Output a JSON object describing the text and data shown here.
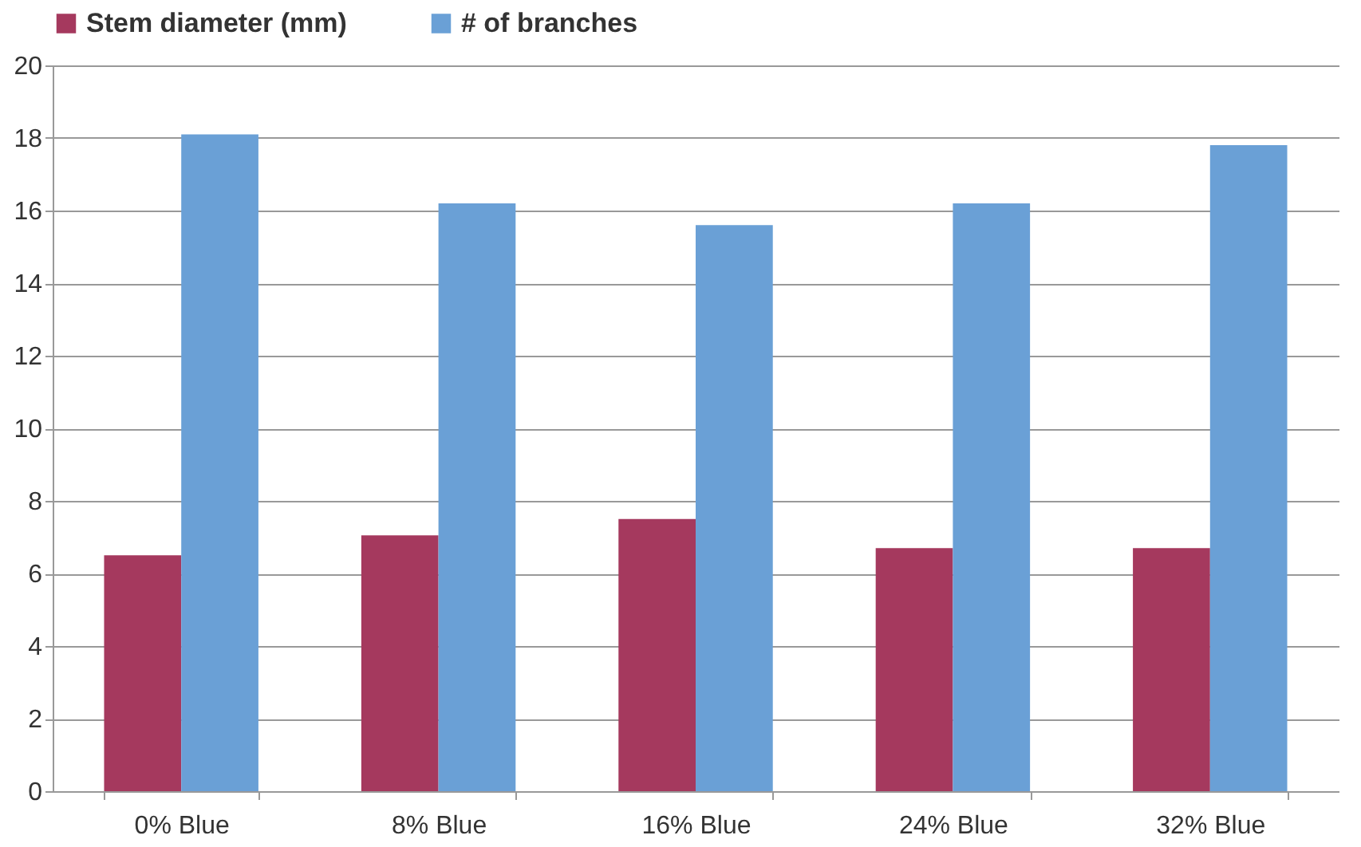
{
  "chart_data": {
    "type": "bar",
    "categories": [
      "0% Blue",
      "8% Blue",
      "16% Blue",
      "24% Blue",
      "32% Blue"
    ],
    "series": [
      {
        "name": "Stem diameter (mm)",
        "color": "#a5395e",
        "values": [
          6.5,
          7.05,
          7.5,
          6.7,
          6.7
        ]
      },
      {
        "name": "# of branches",
        "color": "#6aa0d6",
        "values": [
          18.1,
          16.2,
          15.6,
          16.2,
          17.8
        ]
      }
    ],
    "ylim": [
      0,
      20
    ],
    "yticks": [
      0,
      2,
      4,
      6,
      8,
      10,
      12,
      14,
      16,
      18,
      20
    ],
    "grid": "y",
    "legend": "top"
  }
}
